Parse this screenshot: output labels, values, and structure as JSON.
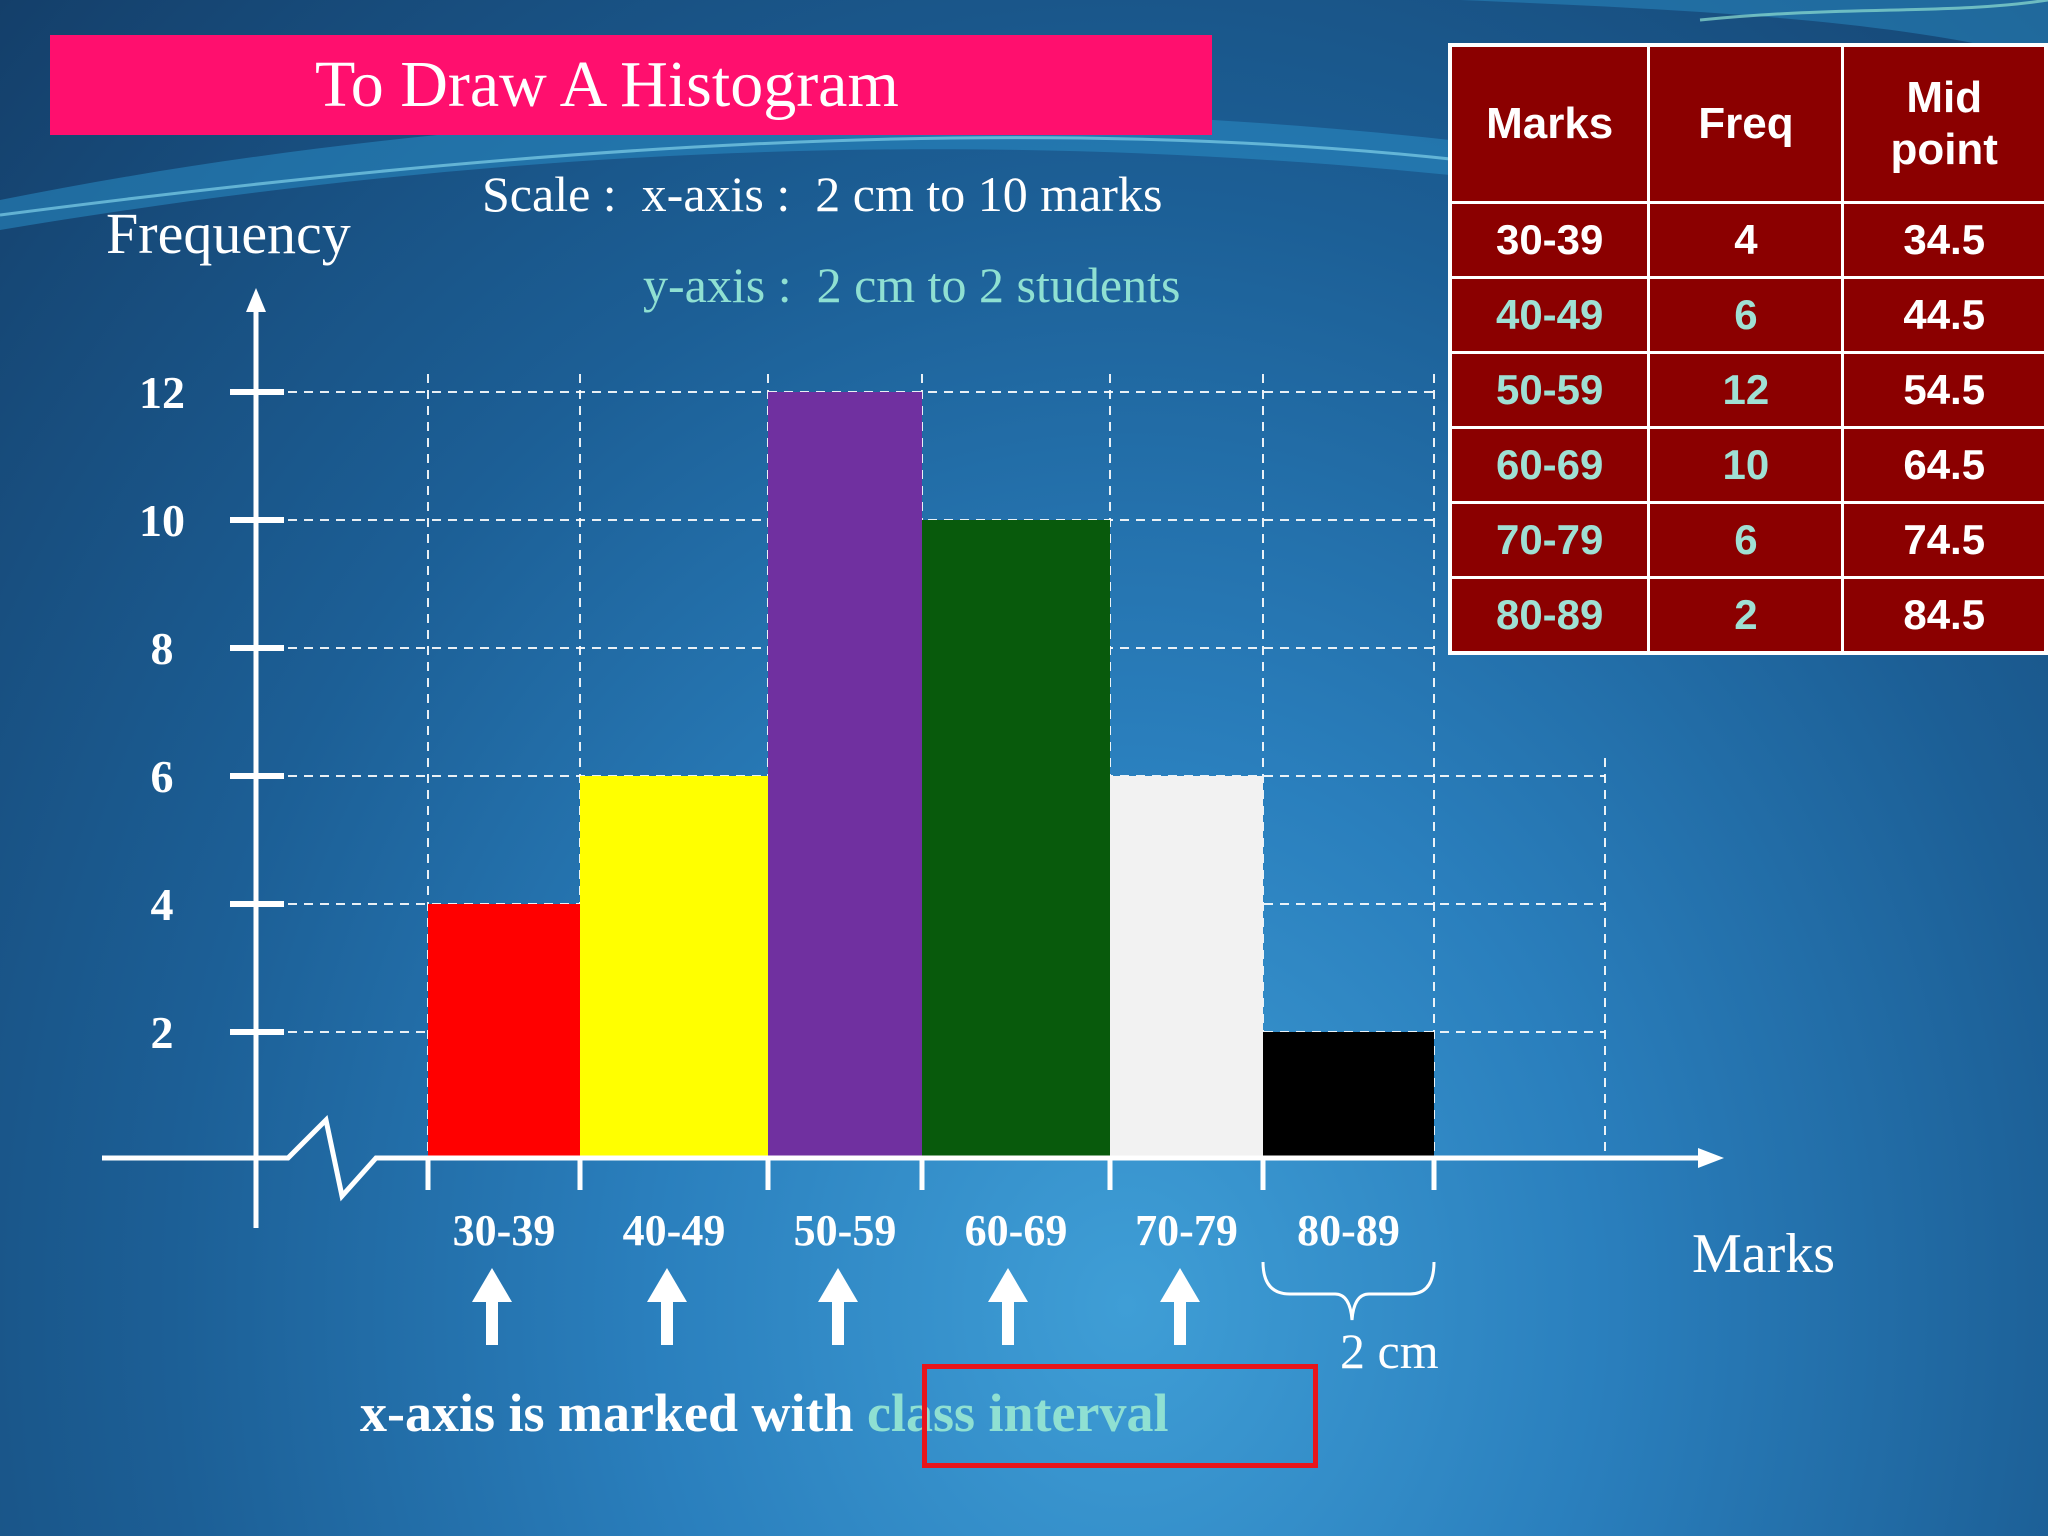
{
  "slide": {
    "title": "To Draw A Histogram",
    "scale_x": "Scale :  x-axis :  2 cm to 10 marks",
    "scale_y": "y-axis :  2 cm to 2 students",
    "x_axis_name": "Marks",
    "y_axis_name": "Frequency",
    "bar_width_note": "2 cm",
    "note_part1": "x-axis is marked with ",
    "note_part2": "class interval"
  },
  "table": {
    "headers": [
      "Marks",
      "Freq",
      "Mid point"
    ],
    "rows": [
      [
        "30-39",
        "4",
        "34.5"
      ],
      [
        "40-49",
        "6",
        "44.5"
      ],
      [
        "50-59",
        "12",
        "54.5"
      ],
      [
        "60-69",
        "10",
        "64.5"
      ],
      [
        "70-79",
        "6",
        "74.5"
      ],
      [
        "80-89",
        "2",
        "84.5"
      ]
    ]
  },
  "chart_data": {
    "type": "bar",
    "categories": [
      "30-39",
      "40-49",
      "50-59",
      "60-69",
      "70-79",
      "80-89"
    ],
    "values": [
      4,
      6,
      12,
      10,
      6,
      2
    ],
    "colors": [
      "#ff0000",
      "#ffff00",
      "#7030a0",
      "#085a0c",
      "#f2f2f2",
      "#000000"
    ],
    "yticks": [
      2,
      4,
      6,
      8,
      10,
      12
    ],
    "ylim": [
      0,
      12
    ],
    "grid": true,
    "xlabel": "Marks",
    "ylabel": "Frequency"
  }
}
